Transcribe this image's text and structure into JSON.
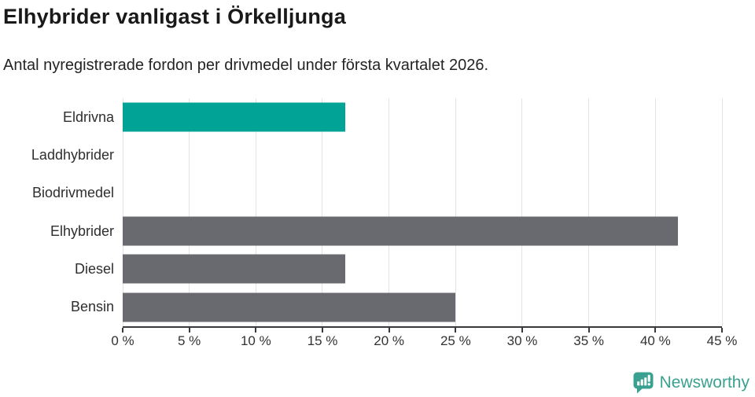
{
  "header": {
    "title": "Elhybrider vanligast i Örkelljunga",
    "subtitle": "Antal nyregistrerade fordon per drivmedel under första kvartalet 2026."
  },
  "chart_data": {
    "type": "bar",
    "orientation": "horizontal",
    "title": "Elhybrider vanligast i Örkelljunga",
    "subtitle": "Antal nyregistrerade fordon per drivmedel under första kvartalet 2026.",
    "categories": [
      "Eldrivna",
      "Laddhybrider",
      "Biodrivmedel",
      "Elhybrider",
      "Diesel",
      "Bensin"
    ],
    "values": [
      16.7,
      0,
      0,
      41.7,
      16.7,
      25
    ],
    "bar_colors": [
      "#00a396",
      "#696970",
      "#696970",
      "#696970",
      "#696970",
      "#696970"
    ],
    "highlight_category": "Eldrivna",
    "highlight_color": "#00a396",
    "default_color": "#696970",
    "xlabel": "",
    "ylabel": "",
    "xlim": [
      0,
      45
    ],
    "xticks": [
      0,
      5,
      10,
      15,
      20,
      25,
      30,
      35,
      40,
      45
    ],
    "xtick_suffix": " %",
    "grid": true,
    "gridline_color": "#e4e4e4",
    "axis_color": "#3a3a3e",
    "legend": "none"
  },
  "footer": {
    "brand": "Newsworthy",
    "logo_icon": "bar-chart-speech-bubble-icon",
    "logo_color": "#3aa191"
  }
}
